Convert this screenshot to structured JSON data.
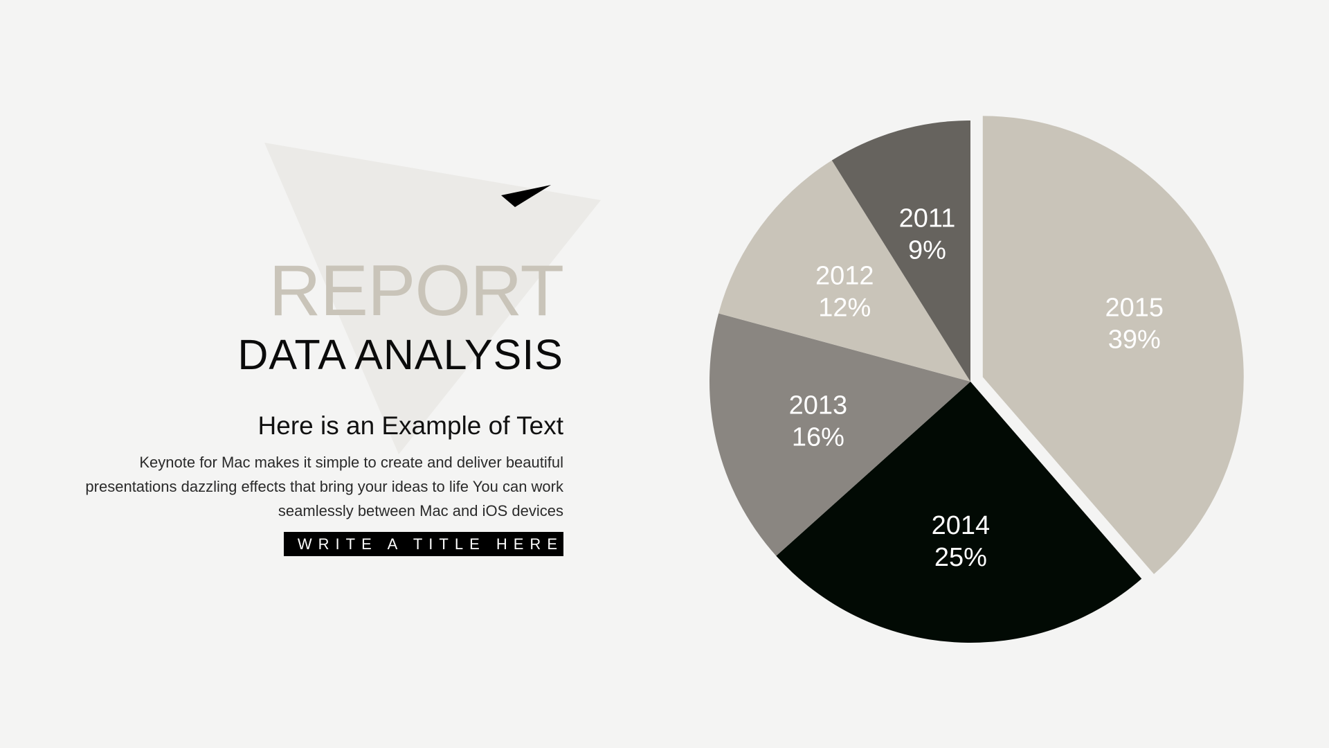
{
  "slide": {
    "background": "#f4f4f3",
    "heading": "REPORT",
    "heading_color": "#c9c4b9",
    "subheading": "DATA ANALYSIS",
    "subheading_color": "#0b0b0b",
    "example_title": "Here is an Example of Text",
    "body_text": "Keynote for Mac makes it simple to create and deliver beautiful presentations dazzling effects that bring your ideas to life You can work seamlessly between Mac and iOS devices",
    "title_bar_label": "WRITE A TITLE HERE",
    "title_bar_color": "#000000",
    "decor": {
      "triangle_color": "#ebeae7",
      "arrow_color": "#000000",
      "arrow_icon": "paper-plane-icon"
    }
  },
  "chart_data": {
    "type": "pie",
    "slices": [
      {
        "year": "2011",
        "value": 9,
        "label": "9%",
        "color": "#66635e"
      },
      {
        "year": "2012",
        "value": 12,
        "label": "12%",
        "color": "#c9c4b9"
      },
      {
        "year": "2013",
        "value": 16,
        "label": "16%",
        "color": "#8a8681"
      },
      {
        "year": "2014",
        "value": 25,
        "label": "25%",
        "color": "#020a04"
      },
      {
        "year": "2015",
        "value": 39,
        "label": "39%",
        "color": "#c9c4b9",
        "exploded": true
      }
    ],
    "label_color": "#ffffff"
  }
}
